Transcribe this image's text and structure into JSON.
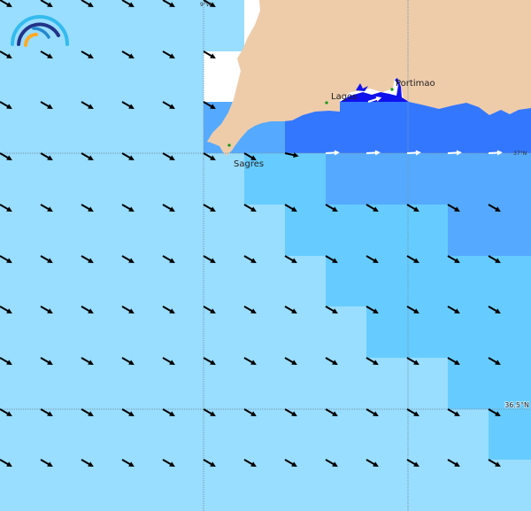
{
  "map": {
    "colors": {
      "L": "#99ddff",
      "M": "#66ccff",
      "B": "#55aaff",
      "D": "#3377ff",
      "W": "#ffffff",
      "land": "#eeccaa",
      "bay": "#1111ee",
      "arrow_dark": "#000000",
      "arrow_light": "#ffffff",
      "town": "#119911",
      "graticule": "#7799aa"
    },
    "cell_grid": [
      "LLLLLLWWWWWWW",
      "LLLLLWWWWWWWW",
      "LLLLLBBDDDDDD",
      "LLLLLLMMBBBBB",
      "LLLLLLLMMMMBB",
      "LLLLLLLLMMMMM",
      "LLLLLLLLLMMMM",
      "LLLLLLLLLLLMM",
      "LLLLLLLLLLLLM",
      "LLLLLLLLLLLLL"
    ],
    "graticule_labels": {
      "lon": "9°W",
      "lat_1": "37°N",
      "lat_2": "36.5°N"
    },
    "places": [
      {
        "name": "Sagres"
      },
      {
        "name": "Lagos"
      },
      {
        "name": "Portimao"
      }
    ]
  }
}
